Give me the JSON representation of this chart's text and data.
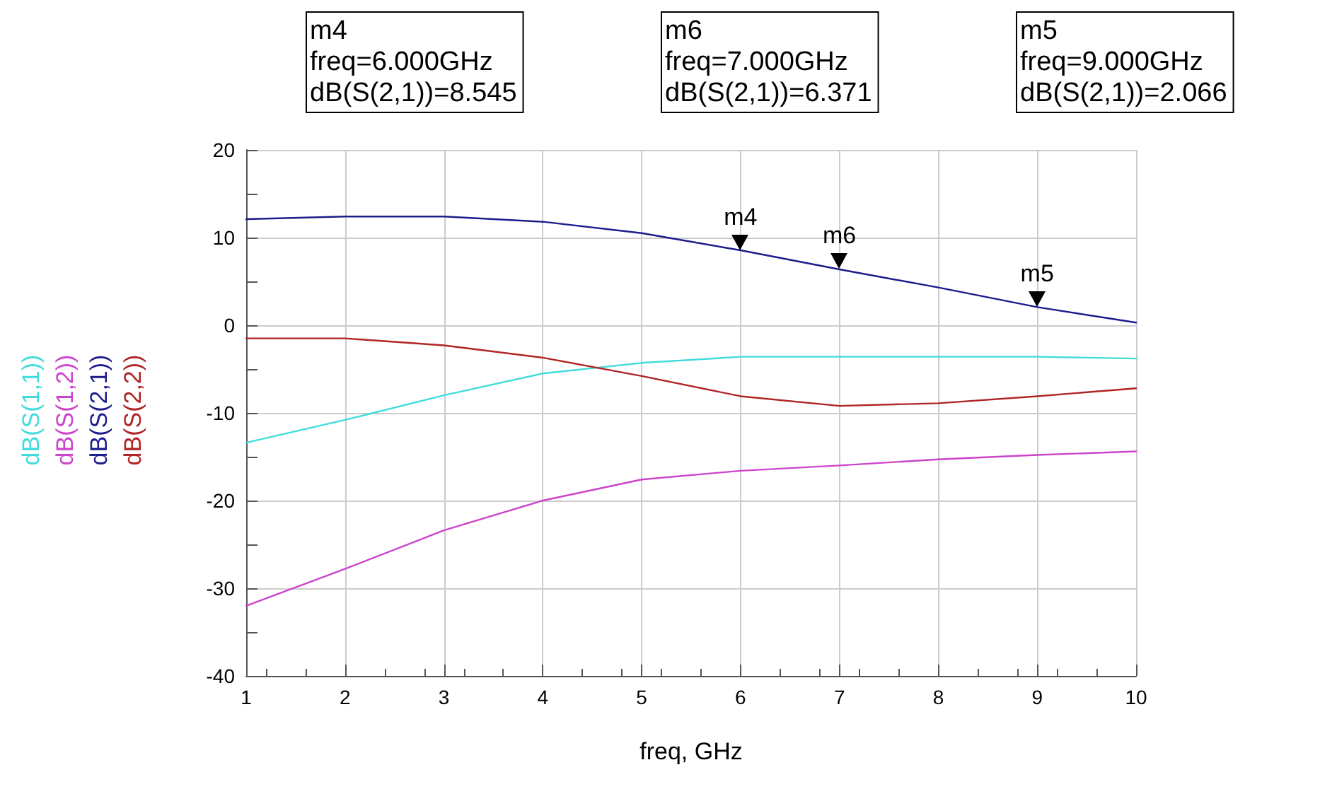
{
  "chart_data": {
    "type": "line",
    "xlabel": "freq, GHz",
    "x": [
      1,
      2,
      3,
      4,
      5,
      6,
      7,
      8,
      9,
      10
    ],
    "xlim": [
      1,
      10
    ],
    "xticks": [
      1,
      2,
      3,
      4,
      5,
      6,
      7,
      8,
      9,
      10
    ],
    "ylim": [
      -40,
      20
    ],
    "yticks": [
      -40,
      -30,
      -20,
      -10,
      0,
      10,
      20
    ],
    "grid": true,
    "legend": "left",
    "marker": "none",
    "line_style": "solid",
    "series": [
      {
        "name": "dB(S(1,1))",
        "color": "#40dcdc",
        "values": [
          -13.4,
          -10.8,
          -8.0,
          -5.5,
          -4.3,
          -3.6,
          -3.6,
          -3.6,
          -3.6,
          -3.8
        ]
      },
      {
        "name": "dB(S(1,2))",
        "color": "#cc44cc",
        "values": [
          -32.0,
          -27.8,
          -23.4,
          -20.0,
          -17.6,
          -16.6,
          -16.0,
          -15.3,
          -14.8,
          -14.4
        ]
      },
      {
        "name": "dB(S(2,1))",
        "color": "#1c1c8c",
        "values": [
          12.1,
          12.4,
          12.4,
          11.8,
          10.5,
          8.545,
          6.371,
          4.3,
          2.066,
          0.3
        ]
      },
      {
        "name": "dB(S(2,2))",
        "color": "#b02424",
        "values": [
          -1.5,
          -1.5,
          -2.3,
          -3.7,
          -5.8,
          -8.1,
          -9.2,
          -8.9,
          -8.1,
          -7.2
        ]
      }
    ],
    "annotations": [
      {
        "text": "m4",
        "x": 6,
        "y": 8.545
      },
      {
        "text": "m6",
        "x": 7,
        "y": 6.371
      },
      {
        "text": "m5",
        "x": 9,
        "y": 2.066
      },
      "m4\nfreq=6.000GHz\ndB(S(2,1))=8.545",
      "m6\nfreq=7.000GHz\ndB(S(2,1))=6.371",
      "m5\nfreq=9.000GHz\ndB(S(2,1))=2.066"
    ]
  }
}
